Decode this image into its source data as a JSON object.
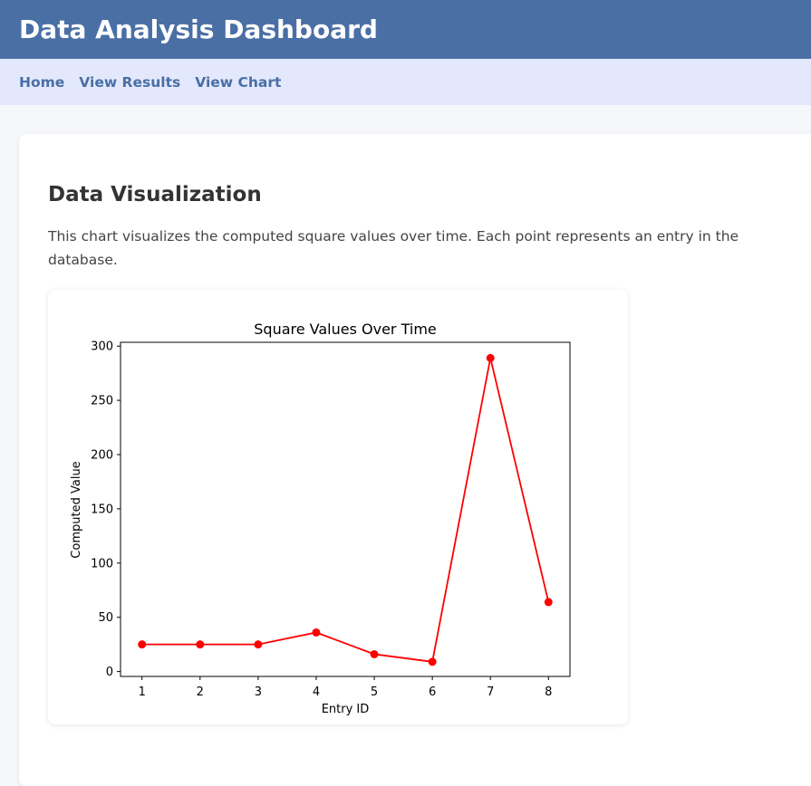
{
  "header": {
    "title": "Data Analysis Dashboard"
  },
  "nav": {
    "items": [
      "Home",
      "View Results",
      "View Chart"
    ]
  },
  "section": {
    "title": "Data Visualization",
    "description": "This chart visualizes the computed square values over time. Each point represents an entry in the database."
  },
  "colors": {
    "header_bg": "#4a6fa5",
    "nav_bg": "#e3e8fc",
    "series": "#ff0000"
  },
  "chart_data": {
    "type": "line",
    "title": "Square Values Over Time",
    "xlabel": "Entry ID",
    "ylabel": "Computed Value",
    "x": [
      1,
      2,
      3,
      4,
      5,
      6,
      7,
      8
    ],
    "values": [
      25,
      25,
      25,
      36,
      16,
      9,
      289,
      64
    ],
    "xticks": [
      1,
      2,
      3,
      4,
      5,
      6,
      7,
      8
    ],
    "yticks": [
      0,
      50,
      100,
      150,
      200,
      250,
      300
    ],
    "xlim": [
      0.63,
      8.37
    ],
    "ylim": [
      -4.5,
      303.5
    ],
    "grid": false,
    "marker": "circle"
  }
}
